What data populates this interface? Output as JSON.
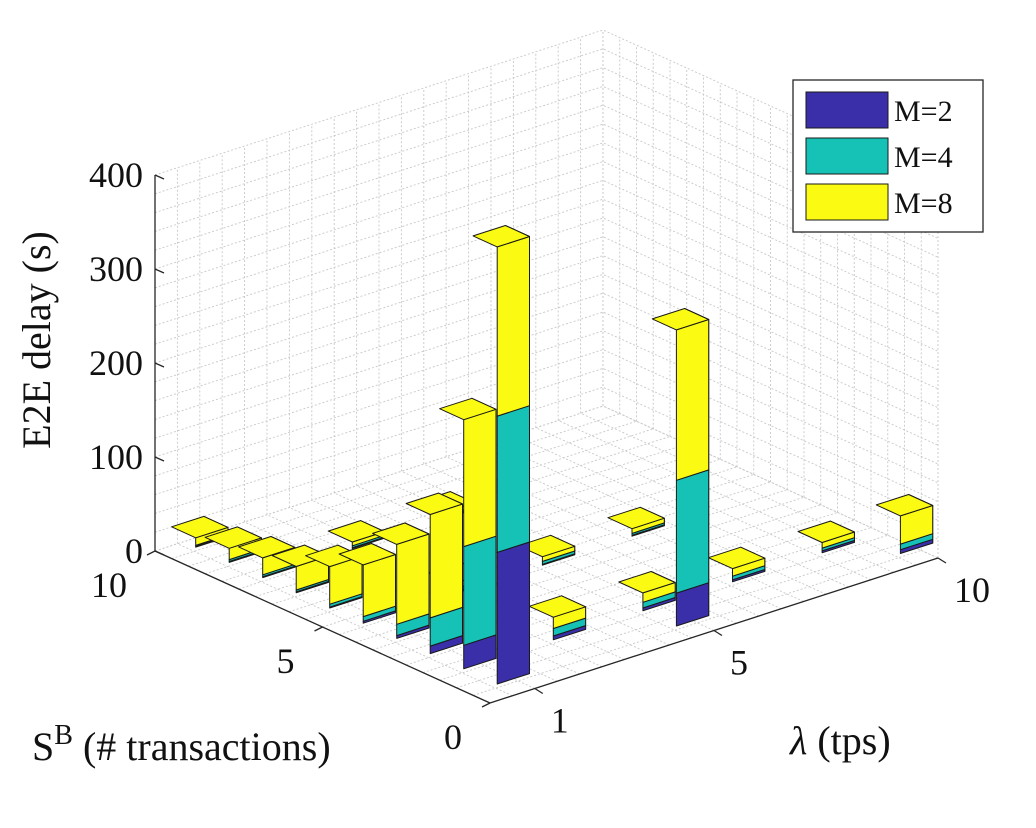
{
  "chart_data": {
    "type": "bar3d-stacked",
    "zlabel": "E2E delay (s)",
    "xlabel_main": "λ",
    "xlabel_unit": " (tps)",
    "ylabel_main": "S",
    "ylabel_sup": "B",
    "ylabel_unit": " (# transactions)",
    "zlim": [
      0,
      400
    ],
    "zticks": [
      "0",
      "100",
      "200",
      "300",
      "400"
    ],
    "xticks": [
      "1",
      "5",
      "10"
    ],
    "yticks": [
      "0",
      "5",
      "10"
    ],
    "grid": true,
    "legend_position": "top-right",
    "series": [
      {
        "name": "M=2",
        "color": "#3a2ea9"
      },
      {
        "name": "M=4",
        "color": "#16c1b6"
      },
      {
        "name": "M=8",
        "color": "#fafa13"
      }
    ],
    "bars": [
      {
        "lambda": 1,
        "s": 1,
        "values": [
          140,
          145,
          180
        ]
      },
      {
        "lambda": 5,
        "s": 1,
        "values": [
          35,
          120,
          160
        ]
      },
      {
        "lambda": 10,
        "s": 1,
        "values": [
          4,
          6,
          30
        ]
      },
      {
        "lambda": 1,
        "s": 2,
        "values": [
          25,
          105,
          135
        ]
      },
      {
        "lambda": 1,
        "s": 3,
        "values": [
          8,
          30,
          110
        ]
      },
      {
        "lambda": 1,
        "s": 4,
        "values": [
          3,
          12,
          85
        ]
      },
      {
        "lambda": 1,
        "s": 5,
        "values": [
          2,
          5,
          55
        ]
      },
      {
        "lambda": 1,
        "s": 6,
        "values": [
          1,
          3,
          40
        ]
      },
      {
        "lambda": 1,
        "s": 7,
        "values": [
          1,
          2,
          25
        ]
      },
      {
        "lambda": 1,
        "s": 8,
        "values": [
          1,
          2,
          18
        ]
      },
      {
        "lambda": 1,
        "s": 9,
        "values": [
          1,
          2,
          12
        ]
      },
      {
        "lambda": 1,
        "s": 10,
        "values": [
          1,
          1,
          8
        ]
      },
      {
        "lambda": 3,
        "s": 2,
        "values": [
          4,
          8,
          12
        ]
      },
      {
        "lambda": 5,
        "s": 2,
        "values": [
          3,
          6,
          10
        ]
      },
      {
        "lambda": 7,
        "s": 2,
        "values": [
          2,
          4,
          8
        ]
      },
      {
        "lambda": 9,
        "s": 2,
        "values": [
          2,
          3,
          6
        ]
      },
      {
        "lambda": 3,
        "s": 5,
        "values": [
          2,
          3,
          6
        ]
      },
      {
        "lambda": 5,
        "s": 5,
        "values": [
          1,
          3,
          5
        ]
      },
      {
        "lambda": 7,
        "s": 5,
        "values": [
          1,
          2,
          5
        ]
      },
      {
        "lambda": 3,
        "s": 8,
        "values": [
          1,
          2,
          4
        ]
      },
      {
        "lambda": 5,
        "s": 8,
        "values": [
          1,
          2,
          4
        ]
      }
    ]
  }
}
